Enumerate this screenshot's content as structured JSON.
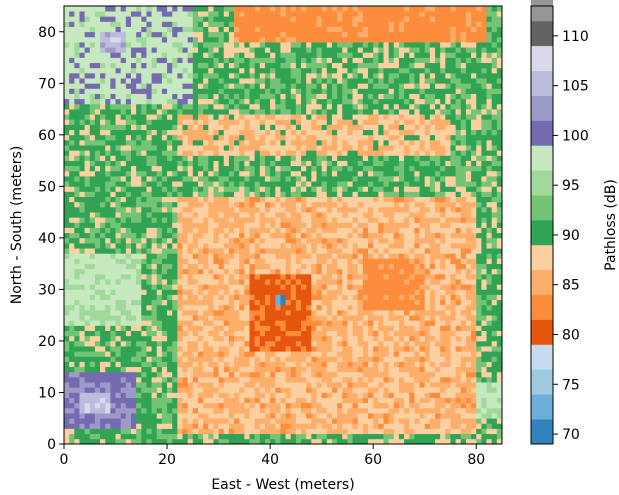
{
  "chart_data": {
    "type": "heatmap",
    "title": "",
    "xlabel": "East - West (meters)",
    "ylabel": "North - South (meters)",
    "xlim": [
      0,
      85
    ],
    "ylim": [
      0,
      85
    ],
    "x_ticks": [
      0,
      20,
      40,
      60,
      80
    ],
    "y_ticks": [
      0,
      10,
      20,
      30,
      40,
      50,
      60,
      70,
      80
    ],
    "colorbar": {
      "label": "Pathloss (dB)",
      "range": [
        69,
        113
      ],
      "step": 2.5,
      "ticks": [
        70,
        75,
        80,
        85,
        90,
        95,
        100,
        105,
        110
      ],
      "colors": [
        "#3182bd",
        "#6baed6",
        "#9ecae1",
        "#c6dbef",
        "#e6550d",
        "#fd8d3c",
        "#fdae6b",
        "#fdd0a2",
        "#31a354",
        "#74c476",
        "#a1d99b",
        "#c7e9c0",
        "#756bb1",
        "#9e9ac8",
        "#bcbddc",
        "#dadaeb",
        "#636363",
        "#969696",
        "#bdbdbd",
        "#d9d9d9"
      ]
    },
    "regions": [
      {
        "zone": "top-strip",
        "x": [
          33,
          82
        ],
        "y": [
          78,
          85
        ],
        "pathloss_db": 83
      },
      {
        "zone": "central-orange",
        "x": [
          22,
          80
        ],
        "y": [
          2,
          48
        ],
        "pathloss_db": 86
      },
      {
        "zone": "hotspot",
        "x": [
          36,
          48
        ],
        "y": [
          18,
          33
        ],
        "pathloss_db": 81
      },
      {
        "zone": "right-hotspot",
        "x": [
          58,
          70
        ],
        "y": [
          26,
          36
        ],
        "pathloss_db": 83
      },
      {
        "zone": "mid-band",
        "x": [
          22,
          75
        ],
        "y": [
          56,
          64
        ],
        "pathloss_db": 87
      },
      {
        "zone": "left-purple-top",
        "x": [
          0,
          25
        ],
        "y": [
          66,
          85
        ],
        "pathloss_db": 98
      },
      {
        "zone": "left-purple-mid",
        "x": [
          0,
          15
        ],
        "y": [
          23,
          37
        ],
        "pathloss_db": 97
      },
      {
        "zone": "left-purple-bottom",
        "x": [
          0,
          14
        ],
        "y": [
          3,
          14
        ],
        "pathloss_db": 101
      },
      {
        "zone": "dark-spot-bottom-left",
        "x": [
          3,
          9
        ],
        "y": [
          6,
          10
        ],
        "pathloss_db": 106
      },
      {
        "zone": "dark-spot-top-left",
        "x": [
          7,
          12
        ],
        "y": [
          76,
          80
        ],
        "pathloss_db": 105
      },
      {
        "zone": "right-purple",
        "x": [
          80,
          85
        ],
        "y": [
          5,
          12
        ],
        "pathloss_db": 97
      },
      {
        "zone": "source",
        "x": [
          41,
          43
        ],
        "y": [
          27,
          29
        ],
        "pathloss_db": 72
      }
    ]
  }
}
